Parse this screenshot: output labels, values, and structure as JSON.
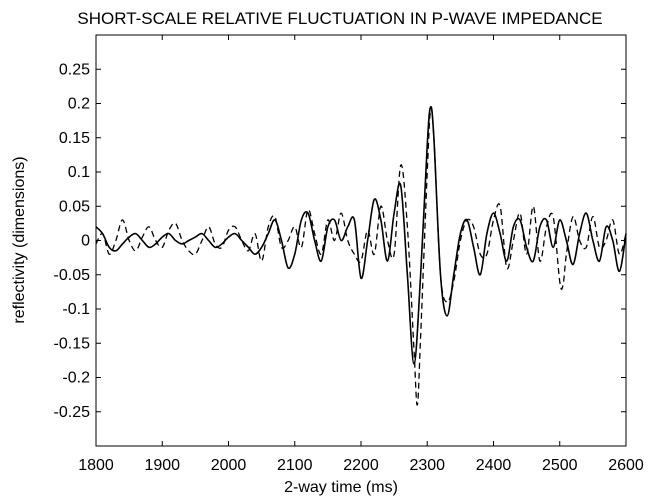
{
  "chart_data": {
    "type": "line",
    "title": "SHORT-SCALE RELATIVE FLUCTUATION IN P-WAVE IMPEDANCE",
    "xlabel": "2-way time (ms)",
    "ylabel": "reflectivity (dimensions)",
    "xlim": [
      1800,
      2600
    ],
    "ylim": [
      -0.3,
      0.3
    ],
    "xticks": [
      1800,
      1900,
      2000,
      2100,
      2200,
      2300,
      2400,
      2500,
      2600
    ],
    "yticks": [
      0.25,
      0.2,
      0.15,
      0.1,
      0.05,
      0,
      -0.05,
      -0.1,
      -0.15,
      -0.2,
      -0.25
    ],
    "ytick_labels": [
      "0.25",
      "0.2",
      "0.15",
      "0.1",
      "0.05",
      "0",
      "-0.05",
      "-0.1",
      "-0.15",
      "-0.2",
      "-0.25"
    ],
    "grid": false,
    "series": [
      {
        "style": "solid",
        "color": "#000000",
        "x": [
          1800,
          1810,
          1820,
          1830,
          1840,
          1850,
          1860,
          1870,
          1880,
          1890,
          1900,
          1910,
          1920,
          1930,
          1940,
          1950,
          1960,
          1970,
          1980,
          1990,
          2000,
          2010,
          2020,
          2030,
          2040,
          2050,
          2060,
          2070,
          2080,
          2090,
          2100,
          2110,
          2120,
          2130,
          2140,
          2150,
          2160,
          2170,
          2180,
          2190,
          2200,
          2210,
          2220,
          2230,
          2240,
          2250,
          2260,
          2270,
          2280,
          2290,
          2300,
          2305,
          2310,
          2320,
          2330,
          2340,
          2350,
          2360,
          2370,
          2380,
          2390,
          2400,
          2410,
          2420,
          2430,
          2440,
          2450,
          2460,
          2470,
          2480,
          2490,
          2500,
          2510,
          2520,
          2530,
          2540,
          2550,
          2560,
          2570,
          2580,
          2590,
          2600
        ],
        "y": [
          0.02,
          0.01,
          -0.01,
          -0.015,
          -0.005,
          0.005,
          0.01,
          0.0,
          -0.01,
          -0.005,
          0.005,
          0.01,
          0.0,
          -0.005,
          0.0,
          0.005,
          0.01,
          0.0,
          -0.01,
          -0.005,
          0.005,
          0.01,
          0.0,
          -0.01,
          -0.02,
          -0.01,
          0.01,
          0.03,
          0.0,
          -0.04,
          -0.02,
          0.03,
          0.04,
          0.0,
          -0.03,
          0.02,
          0.03,
          0.0,
          0.02,
          0.03,
          -0.055,
          0.0,
          0.06,
          0.03,
          -0.03,
          0.04,
          0.08,
          -0.05,
          -0.18,
          -0.05,
          0.14,
          0.195,
          0.15,
          -0.05,
          -0.11,
          -0.05,
          0.01,
          0.03,
          -0.01,
          -0.05,
          0.01,
          0.04,
          0.01,
          -0.03,
          0.02,
          0.03,
          -0.01,
          -0.03,
          0.02,
          0.03,
          -0.01,
          0.03,
          0.0,
          -0.035,
          0.01,
          0.04,
          0.0,
          -0.03,
          0.02,
          0.0,
          -0.045,
          0.01
        ]
      },
      {
        "style": "dashed",
        "color": "#000000",
        "x": [
          1800,
          1810,
          1820,
          1830,
          1840,
          1850,
          1860,
          1870,
          1880,
          1890,
          1900,
          1910,
          1920,
          1930,
          1940,
          1950,
          1960,
          1970,
          1980,
          1990,
          2000,
          2010,
          2020,
          2030,
          2040,
          2050,
          2060,
          2070,
          2080,
          2090,
          2100,
          2110,
          2120,
          2130,
          2140,
          2150,
          2160,
          2170,
          2180,
          2190,
          2200,
          2210,
          2220,
          2230,
          2240,
          2250,
          2260,
          2270,
          2280,
          2285,
          2290,
          2300,
          2305,
          2310,
          2320,
          2330,
          2340,
          2350,
          2360,
          2370,
          2380,
          2390,
          2400,
          2410,
          2420,
          2430,
          2440,
          2450,
          2460,
          2470,
          2480,
          2490,
          2500,
          2505,
          2510,
          2520,
          2530,
          2540,
          2550,
          2560,
          2570,
          2580,
          2590,
          2600
        ],
        "y": [
          -0.005,
          0.01,
          -0.02,
          0.0,
          0.03,
          0.0,
          -0.015,
          0.005,
          0.02,
          0.0,
          -0.01,
          0.015,
          0.025,
          0.0,
          -0.015,
          -0.02,
          0.0,
          0.02,
          -0.005,
          -0.01,
          0.015,
          0.02,
          0.0,
          -0.015,
          0.01,
          -0.03,
          0.02,
          0.035,
          -0.01,
          0.0,
          0.02,
          -0.01,
          0.045,
          0.01,
          -0.02,
          0.03,
          0.0,
          0.04,
          0.0,
          -0.02,
          -0.03,
          0.015,
          -0.02,
          0.05,
          0.0,
          -0.02,
          0.11,
          0.02,
          -0.16,
          -0.24,
          -0.14,
          0.1,
          0.19,
          0.15,
          -0.05,
          -0.09,
          -0.06,
          0.0,
          0.03,
          0.02,
          -0.02,
          -0.02,
          0.03,
          0.05,
          -0.04,
          0.0,
          0.04,
          -0.02,
          0.05,
          -0.03,
          0.02,
          0.035,
          -0.06,
          -0.065,
          -0.02,
          0.035,
          0.0,
          -0.01,
          0.035,
          -0.01,
          0.0,
          0.03,
          -0.02,
          0.01
        ]
      }
    ]
  }
}
